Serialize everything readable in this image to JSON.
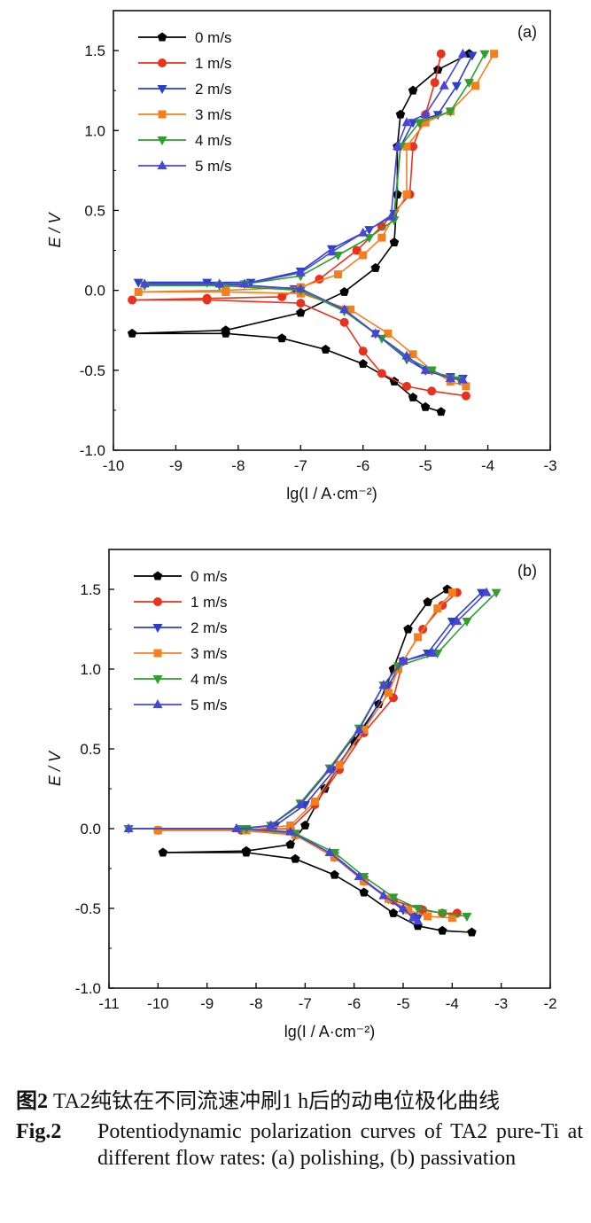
{
  "figure": {
    "caption_cn_label": "图2",
    "caption_cn_text": " TA2纯钛在不同流速冲刷1 h后的动电位极化曲线",
    "caption_en_label": "Fig.2",
    "caption_en_text": "Potentiodynamic polarization curves of TA2 pure-Ti at different flow rates: (a) polishing, (b) passivation"
  },
  "colors": {
    "0 m/s": "#000000",
    "1 m/s": "#e8321e",
    "2 m/s": "#2d3fc9",
    "3 m/s": "#f47f1f",
    "4 m/s": "#2e9e2e",
    "5 m/s": "#4747d6"
  },
  "chart_data": [
    {
      "type": "line",
      "panel_label": "(a)",
      "xlabel": "lg(I / A·cm⁻²)",
      "ylabel": "E / V",
      "xlim": [
        -10,
        -3
      ],
      "ylim": [
        -1.0,
        1.75
      ],
      "xticks": [
        -10,
        -9,
        -8,
        -7,
        -6,
        -5,
        -4,
        -3
      ],
      "yticks": [
        -1.0,
        -0.5,
        0.0,
        0.5,
        1.0,
        1.5
      ],
      "legend_position": "top-left",
      "series": [
        {
          "name": "0 m/s",
          "marker": "pentagon",
          "cathodic": [
            [
              -9.7,
              -0.27
            ],
            [
              -8.2,
              -0.27
            ],
            [
              -7.3,
              -0.3
            ],
            [
              -6.6,
              -0.37
            ],
            [
              -6.0,
              -0.46
            ],
            [
              -5.5,
              -0.57
            ],
            [
              -5.2,
              -0.67
            ],
            [
              -5.0,
              -0.73
            ],
            [
              -4.75,
              -0.76
            ]
          ],
          "anodic": [
            [
              -9.7,
              -0.27
            ],
            [
              -8.2,
              -0.25
            ],
            [
              -7.0,
              -0.14
            ],
            [
              -6.3,
              -0.01
            ],
            [
              -5.8,
              0.14
            ],
            [
              -5.5,
              0.3
            ],
            [
              -5.45,
              0.6
            ],
            [
              -5.45,
              0.9
            ],
            [
              -5.4,
              1.1
            ],
            [
              -5.2,
              1.25
            ],
            [
              -4.8,
              1.38
            ],
            [
              -4.3,
              1.48
            ]
          ]
        },
        {
          "name": "1 m/s",
          "marker": "circle",
          "cathodic": [
            [
              -9.7,
              -0.06
            ],
            [
              -8.5,
              -0.06
            ],
            [
              -7.0,
              -0.08
            ],
            [
              -6.3,
              -0.2
            ],
            [
              -6.0,
              -0.38
            ],
            [
              -5.7,
              -0.52
            ],
            [
              -5.3,
              -0.6
            ],
            [
              -4.9,
              -0.63
            ],
            [
              -4.35,
              -0.66
            ]
          ],
          "anodic": [
            [
              -9.7,
              -0.06
            ],
            [
              -8.5,
              -0.05
            ],
            [
              -7.3,
              -0.04
            ],
            [
              -6.7,
              0.07
            ],
            [
              -6.1,
              0.25
            ],
            [
              -5.7,
              0.4
            ],
            [
              -5.25,
              0.6
            ],
            [
              -5.2,
              0.9
            ],
            [
              -5.0,
              1.1
            ],
            [
              -4.85,
              1.3
            ],
            [
              -4.75,
              1.48
            ]
          ]
        },
        {
          "name": "2 m/s",
          "marker": "triangle-down",
          "cathodic": [
            [
              -9.6,
              0.05
            ],
            [
              -8.5,
              0.05
            ],
            [
              -7.1,
              0.01
            ],
            [
              -6.3,
              -0.12
            ],
            [
              -5.8,
              -0.27
            ],
            [
              -5.3,
              -0.43
            ],
            [
              -5.0,
              -0.5
            ],
            [
              -4.6,
              -0.54
            ],
            [
              -4.4,
              -0.55
            ]
          ],
          "anodic": [
            [
              -9.6,
              0.05
            ],
            [
              -7.8,
              0.05
            ],
            [
              -7.0,
              0.12
            ],
            [
              -6.5,
              0.26
            ],
            [
              -5.9,
              0.38
            ],
            [
              -5.5,
              0.48
            ],
            [
              -5.4,
              0.9
            ],
            [
              -5.2,
              1.05
            ],
            [
              -4.8,
              1.1
            ],
            [
              -4.5,
              1.28
            ],
            [
              -4.25,
              1.47
            ]
          ]
        },
        {
          "name": "3 m/s",
          "marker": "square",
          "cathodic": [
            [
              -9.6,
              -0.01
            ],
            [
              -8.2,
              -0.01
            ],
            [
              -7.0,
              -0.02
            ],
            [
              -6.2,
              -0.12
            ],
            [
              -5.6,
              -0.27
            ],
            [
              -5.2,
              -0.4
            ],
            [
              -4.9,
              -0.5
            ],
            [
              -4.6,
              -0.57
            ],
            [
              -4.35,
              -0.6
            ]
          ],
          "anodic": [
            [
              -9.6,
              -0.01
            ],
            [
              -8.2,
              0.0
            ],
            [
              -7.0,
              0.02
            ],
            [
              -6.4,
              0.1
            ],
            [
              -6.0,
              0.22
            ],
            [
              -5.7,
              0.33
            ],
            [
              -5.3,
              0.6
            ],
            [
              -5.3,
              0.9
            ],
            [
              -5.0,
              1.05
            ],
            [
              -4.6,
              1.12
            ],
            [
              -4.2,
              1.28
            ],
            [
              -3.9,
              1.48
            ]
          ]
        },
        {
          "name": "4 m/s",
          "marker": "triangle-down",
          "cathodic": [
            [
              -9.5,
              0.03
            ],
            [
              -8.3,
              0.03
            ],
            [
              -7.0,
              0.0
            ],
            [
              -6.3,
              -0.13
            ],
            [
              -5.7,
              -0.3
            ],
            [
              -5.3,
              -0.42
            ],
            [
              -4.9,
              -0.5
            ],
            [
              -4.6,
              -0.55
            ],
            [
              -4.45,
              -0.56
            ]
          ],
          "anodic": [
            [
              -9.5,
              0.03
            ],
            [
              -7.9,
              0.04
            ],
            [
              -7.0,
              0.09
            ],
            [
              -6.4,
              0.22
            ],
            [
              -5.9,
              0.33
            ],
            [
              -5.5,
              0.44
            ],
            [
              -5.4,
              0.9
            ],
            [
              -5.1,
              1.05
            ],
            [
              -4.6,
              1.12
            ],
            [
              -4.3,
              1.3
            ],
            [
              -4.05,
              1.48
            ]
          ]
        },
        {
          "name": "5 m/s",
          "marker": "triangle-up",
          "cathodic": [
            [
              -9.5,
              0.04
            ],
            [
              -8.3,
              0.04
            ],
            [
              -7.0,
              0.01
            ],
            [
              -6.3,
              -0.12
            ],
            [
              -5.8,
              -0.27
            ],
            [
              -5.3,
              -0.41
            ],
            [
              -5.0,
              -0.5
            ],
            [
              -4.6,
              -0.55
            ],
            [
              -4.4,
              -0.56
            ]
          ],
          "anodic": [
            [
              -9.5,
              0.04
            ],
            [
              -7.9,
              0.04
            ],
            [
              -7.0,
              0.11
            ],
            [
              -6.5,
              0.24
            ],
            [
              -6.0,
              0.36
            ],
            [
              -5.55,
              0.46
            ],
            [
              -5.45,
              0.9
            ],
            [
              -5.3,
              1.05
            ],
            [
              -5.0,
              1.1
            ],
            [
              -4.7,
              1.28
            ],
            [
              -4.4,
              1.48
            ]
          ]
        }
      ]
    },
    {
      "type": "line",
      "panel_label": "(b)",
      "xlabel": "lg(I / A·cm⁻²)",
      "ylabel": "E / V",
      "xlim": [
        -11,
        -2
      ],
      "ylim": [
        -1.0,
        1.75
      ],
      "xticks": [
        -11,
        -10,
        -9,
        -8,
        -7,
        -6,
        -5,
        -4,
        -3,
        -2
      ],
      "yticks": [
        -1.0,
        -0.5,
        0.0,
        0.5,
        1.0,
        1.5
      ],
      "legend_position": "top-left",
      "series": [
        {
          "name": "0 m/s",
          "marker": "pentagon",
          "cathodic": [
            [
              -9.9,
              -0.15
            ],
            [
              -8.2,
              -0.15
            ],
            [
              -7.2,
              -0.19
            ],
            [
              -6.4,
              -0.29
            ],
            [
              -5.8,
              -0.4
            ],
            [
              -5.2,
              -0.53
            ],
            [
              -4.7,
              -0.61
            ],
            [
              -4.2,
              -0.64
            ],
            [
              -3.6,
              -0.65
            ]
          ],
          "anodic": [
            [
              -9.9,
              -0.15
            ],
            [
              -8.2,
              -0.14
            ],
            [
              -7.3,
              -0.1
            ],
            [
              -7.0,
              0.02
            ],
            [
              -6.6,
              0.25
            ],
            [
              -6.0,
              0.55
            ],
            [
              -5.5,
              0.78
            ],
            [
              -5.2,
              1.0
            ],
            [
              -4.9,
              1.25
            ],
            [
              -4.5,
              1.42
            ],
            [
              -4.1,
              1.5
            ]
          ]
        },
        {
          "name": "1 m/s",
          "marker": "circle",
          "cathodic": [
            [
              -10.0,
              -0.01
            ],
            [
              -8.3,
              -0.01
            ],
            [
              -7.2,
              -0.04
            ],
            [
              -6.4,
              -0.18
            ],
            [
              -5.8,
              -0.33
            ],
            [
              -5.2,
              -0.45
            ],
            [
              -4.6,
              -0.51
            ],
            [
              -4.2,
              -0.53
            ],
            [
              -3.9,
              -0.53
            ]
          ],
          "anodic": [
            [
              -10.0,
              -0.01
            ],
            [
              -8.3,
              -0.01
            ],
            [
              -7.3,
              0.0
            ],
            [
              -6.8,
              0.15
            ],
            [
              -6.3,
              0.37
            ],
            [
              -5.8,
              0.6
            ],
            [
              -5.2,
              0.82
            ],
            [
              -5.0,
              1.05
            ],
            [
              -4.6,
              1.25
            ],
            [
              -4.2,
              1.4
            ],
            [
              -3.9,
              1.48
            ]
          ]
        },
        {
          "name": "2 m/s",
          "marker": "triangle-down",
          "cathodic": [
            [
              -10.6,
              0.0
            ],
            [
              -8.3,
              0.0
            ],
            [
              -7.2,
              -0.03
            ],
            [
              -6.4,
              -0.17
            ],
            [
              -5.8,
              -0.32
            ],
            [
              -5.3,
              -0.44
            ],
            [
              -5.0,
              -0.51
            ],
            [
              -4.8,
              -0.55
            ],
            [
              -4.7,
              -0.56
            ]
          ],
          "anodic": [
            [
              -10.6,
              0.0
            ],
            [
              -8.3,
              0.0
            ],
            [
              -7.6,
              0.02
            ],
            [
              -7.0,
              0.15
            ],
            [
              -6.4,
              0.37
            ],
            [
              -5.8,
              0.62
            ],
            [
              -5.3,
              0.9
            ],
            [
              -5.0,
              1.05
            ],
            [
              -4.5,
              1.1
            ],
            [
              -4.0,
              1.3
            ],
            [
              -3.4,
              1.48
            ]
          ]
        },
        {
          "name": "3 m/s",
          "marker": "square",
          "cathodic": [
            [
              -10.0,
              -0.01
            ],
            [
              -8.2,
              -0.01
            ],
            [
              -7.2,
              -0.04
            ],
            [
              -6.4,
              -0.18
            ],
            [
              -5.8,
              -0.33
            ],
            [
              -5.3,
              -0.44
            ],
            [
              -4.9,
              -0.51
            ],
            [
              -4.5,
              -0.55
            ],
            [
              -4.0,
              -0.56
            ]
          ],
          "anodic": [
            [
              -10.0,
              -0.01
            ],
            [
              -8.2,
              -0.01
            ],
            [
              -7.3,
              0.02
            ],
            [
              -6.8,
              0.17
            ],
            [
              -6.3,
              0.4
            ],
            [
              -5.8,
              0.62
            ],
            [
              -5.3,
              0.85
            ],
            [
              -5.1,
              1.0
            ],
            [
              -4.7,
              1.2
            ],
            [
              -4.3,
              1.38
            ],
            [
              -4.0,
              1.48
            ]
          ]
        },
        {
          "name": "4 m/s",
          "marker": "triangle-down",
          "cathodic": [
            [
              -10.6,
              0.0
            ],
            [
              -8.3,
              0.0
            ],
            [
              -7.2,
              -0.03
            ],
            [
              -6.4,
              -0.15
            ],
            [
              -5.8,
              -0.3
            ],
            [
              -5.2,
              -0.43
            ],
            [
              -4.7,
              -0.5
            ],
            [
              -4.2,
              -0.53
            ],
            [
              -3.7,
              -0.55
            ]
          ],
          "anodic": [
            [
              -10.6,
              0.0
            ],
            [
              -8.2,
              0.0
            ],
            [
              -7.7,
              0.02
            ],
            [
              -7.1,
              0.16
            ],
            [
              -6.5,
              0.38
            ],
            [
              -5.9,
              0.63
            ],
            [
              -5.4,
              0.9
            ],
            [
              -5.1,
              1.02
            ],
            [
              -4.3,
              1.1
            ],
            [
              -3.7,
              1.3
            ],
            [
              -3.1,
              1.48
            ]
          ]
        },
        {
          "name": "5 m/s",
          "marker": "triangle-up",
          "cathodic": [
            [
              -10.6,
              0.0
            ],
            [
              -8.4,
              0.0
            ],
            [
              -7.3,
              -0.02
            ],
            [
              -6.5,
              -0.15
            ],
            [
              -5.9,
              -0.3
            ],
            [
              -5.4,
              -0.42
            ],
            [
              -5.0,
              -0.5
            ],
            [
              -4.8,
              -0.56
            ],
            [
              -4.7,
              -0.58
            ]
          ],
          "anodic": [
            [
              -10.6,
              0.0
            ],
            [
              -8.4,
              0.0
            ],
            [
              -7.7,
              0.02
            ],
            [
              -7.1,
              0.15
            ],
            [
              -6.5,
              0.37
            ],
            [
              -5.9,
              0.62
            ],
            [
              -5.4,
              0.9
            ],
            [
              -5.0,
              1.05
            ],
            [
              -4.4,
              1.1
            ],
            [
              -3.9,
              1.3
            ],
            [
              -3.3,
              1.48
            ]
          ]
        }
      ]
    }
  ]
}
